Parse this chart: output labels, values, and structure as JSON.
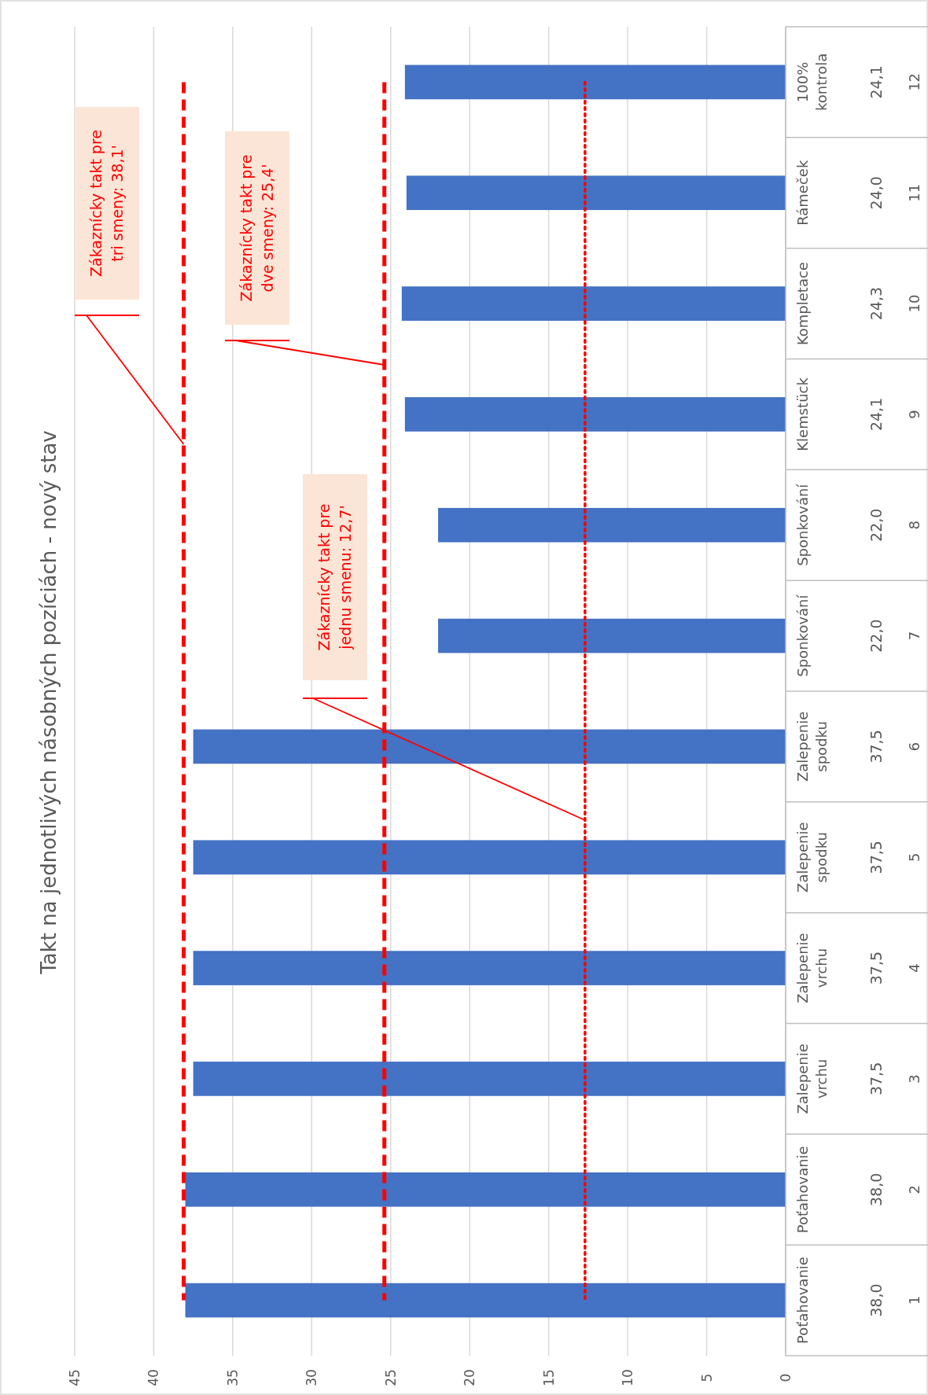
{
  "chart_data": {
    "type": "bar",
    "orientation": "horizontal",
    "title": "Takt na jednotlivých násobných pozíciách - nový stav",
    "categories": [
      "100% kontrola",
      "Rámeček",
      "Kompletace",
      "Klemstück",
      "Sponkování",
      "Sponkování",
      "Zalepenie spodku",
      "Zalepenie spodku",
      "Zalepenie vrchu",
      "Zalepenie vrchu",
      "Poťahovanie",
      "Poťahovanie"
    ],
    "values": [
      24.1,
      24.0,
      24.3,
      24.1,
      22.0,
      22.0,
      37.5,
      37.5,
      37.5,
      37.5,
      38.0,
      38.0
    ],
    "value_labels": [
      "24,1",
      "24,0",
      "24,3",
      "24,1",
      "22,0",
      "22,0",
      "37,5",
      "37,5",
      "37,5",
      "37,5",
      "38,0",
      "38,0"
    ],
    "color": "#4472c4",
    "xlim": [
      45,
      0
    ],
    "xticks": [
      45,
      40,
      35,
      30,
      25,
      20,
      15,
      10,
      5,
      0
    ],
    "grid": "x",
    "ref_lines": [
      {
        "axis": "x",
        "value": 38.1,
        "label": "Zákaznícky takt pre tri smeny: 38,1'",
        "color": "#ff0000",
        "line_style": "dashed"
      },
      {
        "axis": "x",
        "value": 25.4,
        "label": "Zákaznícky takt pre dve smeny: 25,4'",
        "color": "#ff0000",
        "line_style": "dashed"
      },
      {
        "axis": "x",
        "value": 12.7,
        "label": "Zákaznícky takt pre jednu smenu: 12,7'",
        "color": "#ff0000",
        "line_style": "dotted"
      }
    ],
    "annotations": [
      "12",
      "11",
      "10",
      "9",
      "8",
      "7",
      "6",
      "5",
      "4",
      "3",
      "2",
      "1"
    ]
  }
}
